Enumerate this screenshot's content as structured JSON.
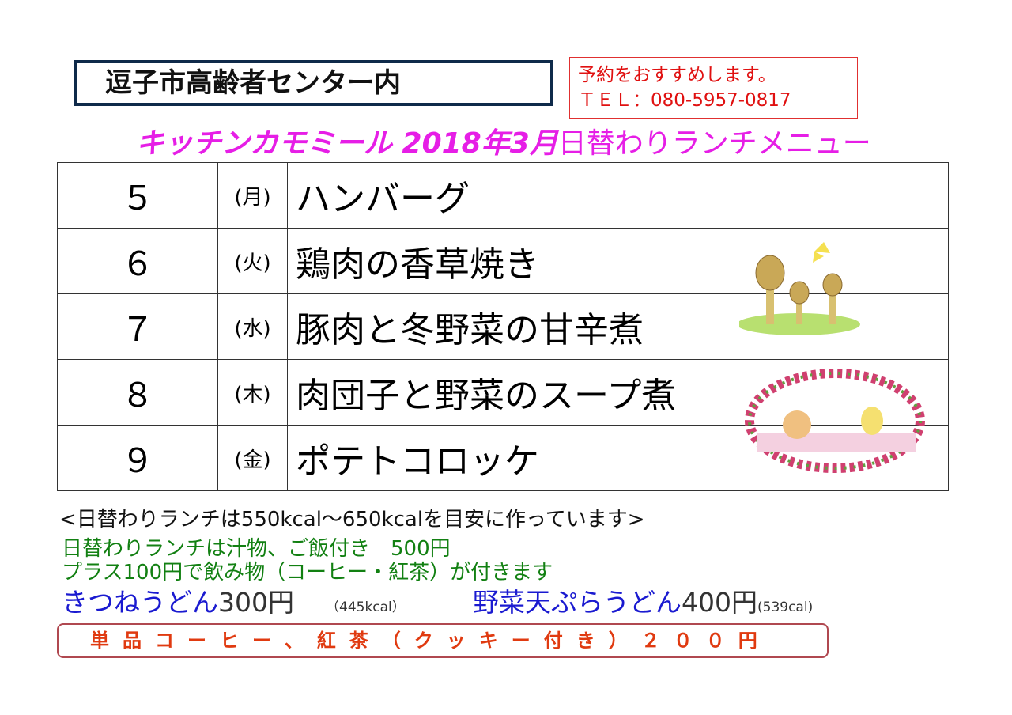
{
  "location": "逗子市高齢者センター内",
  "reservation": {
    "note": "予約をおすすめします。",
    "tel": "ＴＥＬ：080-5957-0817"
  },
  "title": {
    "shop": "キッチンカモミール 2018年3月",
    "subtitle": "日替わりランチメニュー"
  },
  "menu": [
    {
      "date": "５",
      "day": "(月)",
      "dish": "ハンバーグ"
    },
    {
      "date": "６",
      "day": "(火)",
      "dish": "鶏肉の香草焼き"
    },
    {
      "date": "７",
      "day": "(水)",
      "dish": "豚肉と冬野菜の甘辛煮"
    },
    {
      "date": "８",
      "day": "(木)",
      "dish": "肉団子と野菜のスープ煮"
    },
    {
      "date": "９",
      "day": "(金)",
      "dish": "ポテトコロッケ"
    }
  ],
  "notes": {
    "calorie": "<日替わりランチは550kcal〜650kcalを目安に作っています>",
    "set": "日替わりランチは汁物、ご飯付き　500円",
    "drink": "プラス100円で飲み物（コーヒー・紅茶）が付きます"
  },
  "udon": [
    {
      "name": "きつねうどん",
      "price": "300円",
      "kcal": "（445kcal）"
    },
    {
      "name": "野菜天ぷらうどん",
      "price": "400円",
      "kcal": "(539cal)"
    }
  ],
  "single": "単品コーヒー、紅茶（クッキー付き）２００円"
}
